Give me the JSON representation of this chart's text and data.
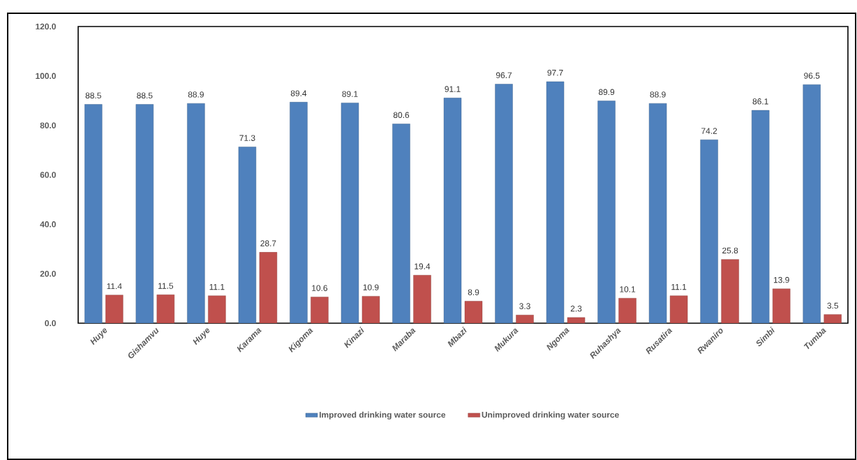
{
  "chart_data": {
    "type": "bar",
    "categories": [
      "Huye",
      "Gishamvu",
      "Huye",
      "Karama",
      "Kigoma",
      "Kinazi",
      "Maraba",
      "Mbazi",
      "Mukura",
      "Ngoma",
      "Ruhashya",
      "Rusatira",
      "Rwaniro",
      "Simbi",
      "Tumba"
    ],
    "series": [
      {
        "name": "Improved drinking water source",
        "color": "#4f81bd",
        "values": [
          88.5,
          88.5,
          88.9,
          71.3,
          89.4,
          89.1,
          80.6,
          91.1,
          96.7,
          97.7,
          89.9,
          88.9,
          74.2,
          86.1,
          96.5
        ]
      },
      {
        "name": "Unimproved drinking water source",
        "color": "#c0504d",
        "values": [
          11.4,
          11.5,
          11.1,
          28.7,
          10.6,
          10.9,
          19.4,
          8.9,
          3.3,
          2.3,
          10.1,
          11.1,
          25.8,
          13.9,
          3.5
        ]
      }
    ],
    "ylim": [
      0,
      120
    ],
    "yticks": [
      {
        "value": 0,
        "label": "0.0"
      },
      {
        "value": 20,
        "label": "20.0"
      },
      {
        "value": 40,
        "label": "40.0"
      },
      {
        "value": 60,
        "label": "60.0"
      },
      {
        "value": 80,
        "label": "80.0"
      },
      {
        "value": 100,
        "label": "100.0"
      },
      {
        "value": 120,
        "label": "120.0"
      }
    ],
    "data_labels": true,
    "legend": "bottom",
    "grid": false
  }
}
